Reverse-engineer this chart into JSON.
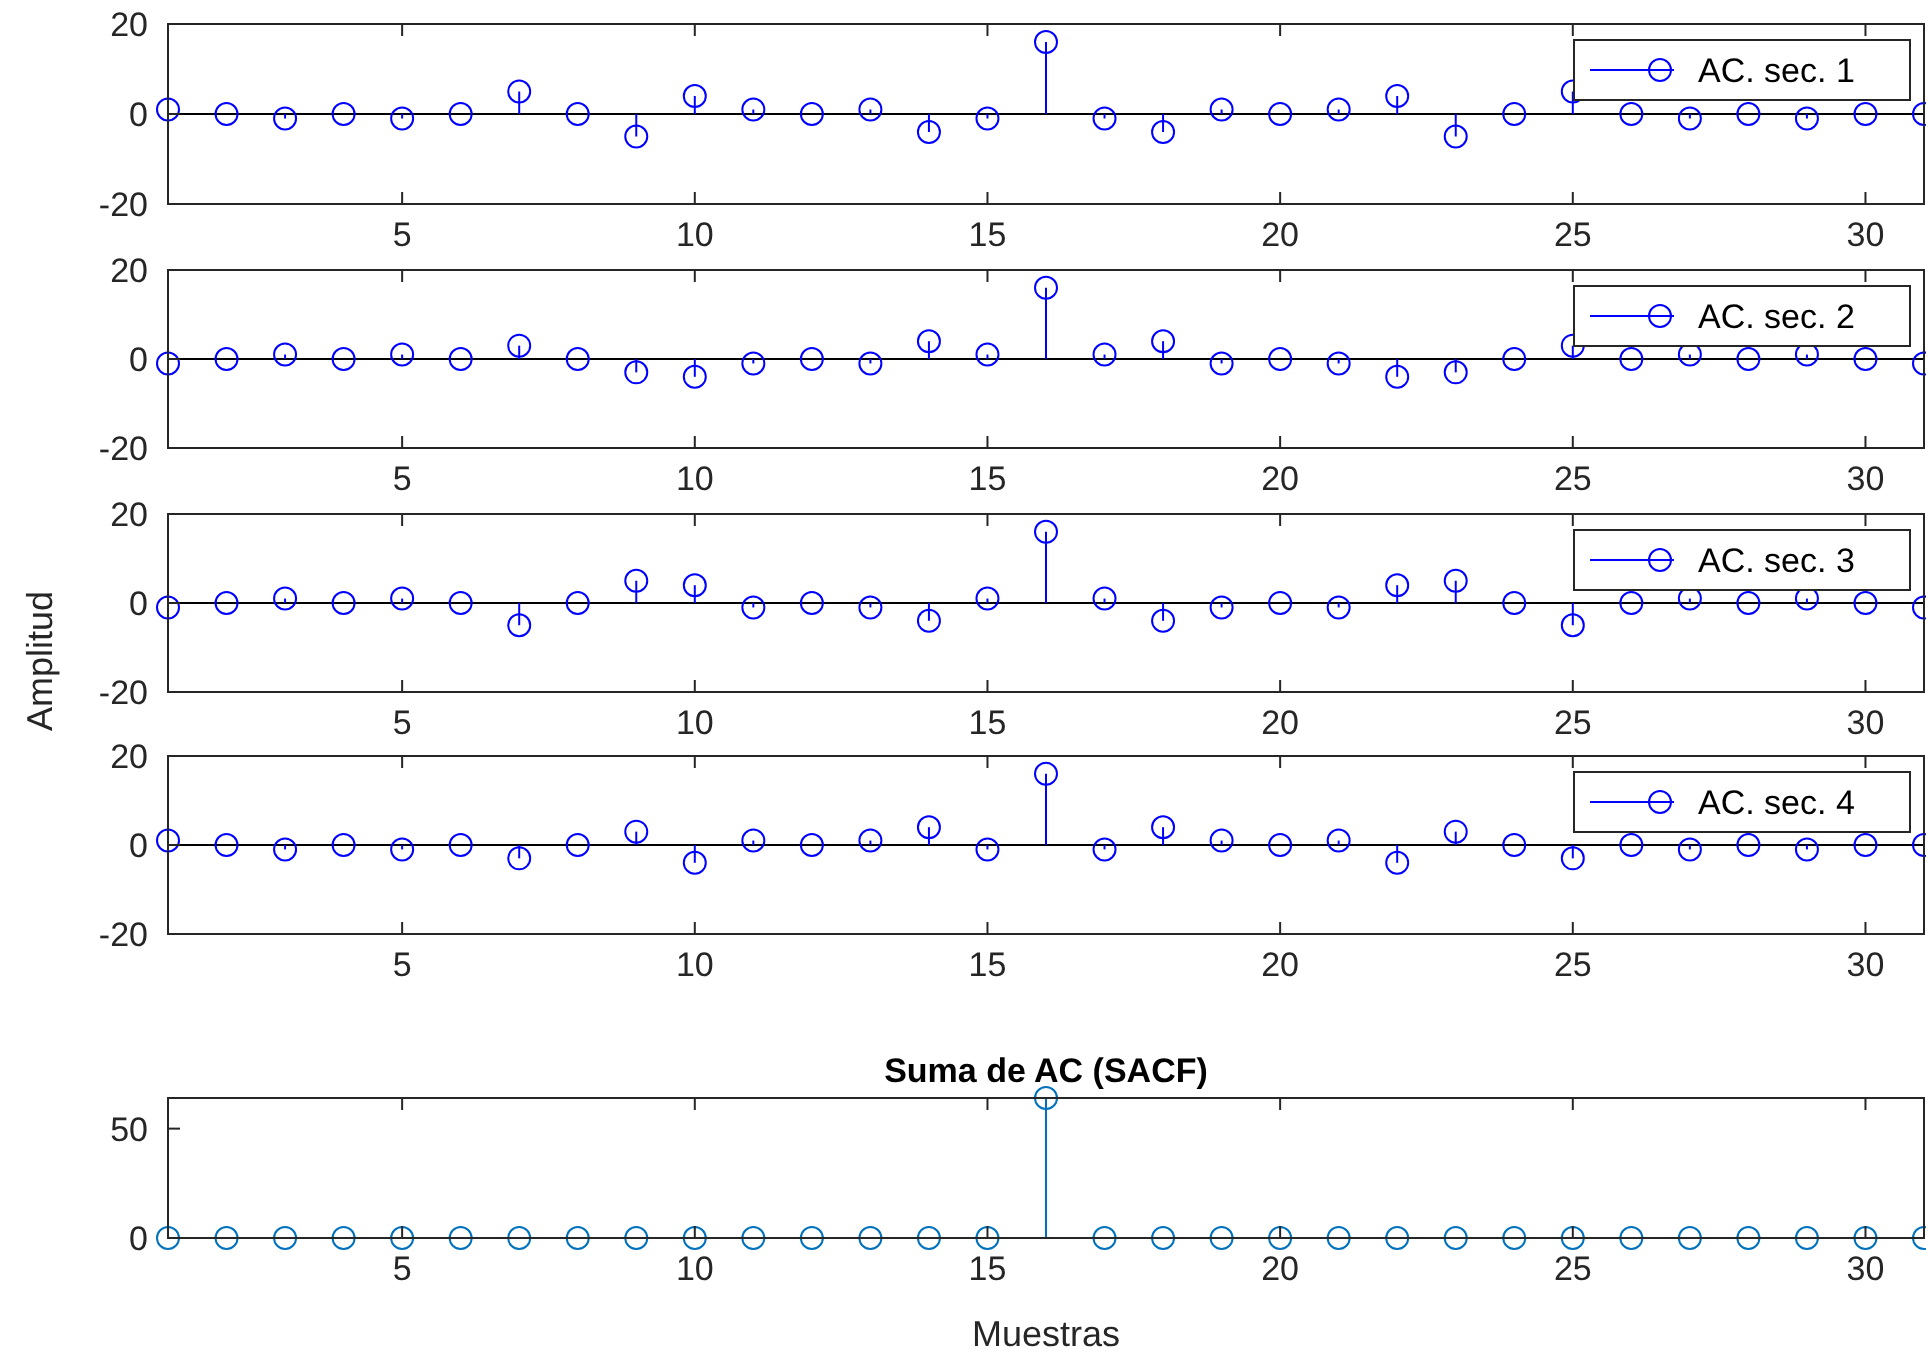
{
  "chart_data": [
    {
      "type": "lollipop",
      "x": [
        1,
        2,
        3,
        4,
        5,
        6,
        7,
        8,
        9,
        10,
        11,
        12,
        13,
        14,
        15,
        16,
        17,
        18,
        19,
        20,
        21,
        22,
        23,
        24,
        25,
        26,
        27,
        28,
        29,
        30,
        31
      ],
      "xlim": [
        1,
        31
      ],
      "xticks": [
        5,
        10,
        15,
        20,
        25,
        30
      ],
      "ylim": [
        -20,
        20
      ],
      "yticks": [
        -20,
        0,
        20
      ],
      "marker": "circle",
      "legend": "top right",
      "series": [
        {
          "name": "AC. sec. 1",
          "color": "#0000ff",
          "values": [
            1,
            0,
            -1,
            0,
            -1,
            0,
            5,
            0,
            -5,
            4,
            1,
            0,
            1,
            -4,
            -1,
            16,
            -1,
            -4,
            1,
            0,
            1,
            4,
            -5,
            0,
            5,
            0,
            -1,
            0,
            -1,
            0,
            0
          ]
        }
      ]
    },
    {
      "type": "lollipop",
      "x": [
        1,
        2,
        3,
        4,
        5,
        6,
        7,
        8,
        9,
        10,
        11,
        12,
        13,
        14,
        15,
        16,
        17,
        18,
        19,
        20,
        21,
        22,
        23,
        24,
        25,
        26,
        27,
        28,
        29,
        30,
        31
      ],
      "xlim": [
        1,
        31
      ],
      "xticks": [
        5,
        10,
        15,
        20,
        25,
        30
      ],
      "ylim": [
        -20,
        20
      ],
      "yticks": [
        -20,
        0,
        20
      ],
      "marker": "circle",
      "legend": "top right",
      "series": [
        {
          "name": "AC. sec. 2",
          "color": "#0000ff",
          "values": [
            -1,
            0,
            1,
            0,
            1,
            0,
            3,
            0,
            -3,
            -4,
            -1,
            0,
            -1,
            4,
            1,
            16,
            1,
            4,
            -1,
            0,
            -1,
            -4,
            -3,
            0,
            3,
            0,
            1,
            0,
            1,
            0,
            -1
          ]
        }
      ]
    },
    {
      "type": "lollipop",
      "x": [
        1,
        2,
        3,
        4,
        5,
        6,
        7,
        8,
        9,
        10,
        11,
        12,
        13,
        14,
        15,
        16,
        17,
        18,
        19,
        20,
        21,
        22,
        23,
        24,
        25,
        26,
        27,
        28,
        29,
        30,
        31
      ],
      "xlim": [
        1,
        31
      ],
      "xticks": [
        5,
        10,
        15,
        20,
        25,
        30
      ],
      "ylim": [
        -20,
        20
      ],
      "yticks": [
        -20,
        0,
        20
      ],
      "marker": "circle",
      "legend": "top right",
      "ylabel": "Amplitud",
      "series": [
        {
          "name": "AC. sec. 3",
          "color": "#0000ff",
          "values": [
            -1,
            0,
            1,
            0,
            1,
            0,
            -5,
            0,
            5,
            4,
            -1,
            0,
            -1,
            -4,
            1,
            16,
            1,
            -4,
            -1,
            0,
            -1,
            4,
            5,
            0,
            -5,
            0,
            1,
            0,
            1,
            0,
            -1
          ]
        }
      ]
    },
    {
      "type": "lollipop",
      "x": [
        1,
        2,
        3,
        4,
        5,
        6,
        7,
        8,
        9,
        10,
        11,
        12,
        13,
        14,
        15,
        16,
        17,
        18,
        19,
        20,
        21,
        22,
        23,
        24,
        25,
        26,
        27,
        28,
        29,
        30,
        31
      ],
      "xlim": [
        1,
        31
      ],
      "xticks": [
        5,
        10,
        15,
        20,
        25,
        30
      ],
      "ylim": [
        -20,
        20
      ],
      "yticks": [
        -20,
        0,
        20
      ],
      "marker": "circle",
      "legend": "top right",
      "series": [
        {
          "name": "AC. sec. 4",
          "color": "#0000ff",
          "values": [
            1,
            0,
            -1,
            0,
            -1,
            0,
            -3,
            0,
            3,
            -4,
            1,
            0,
            1,
            4,
            -1,
            16,
            -1,
            4,
            1,
            0,
            1,
            -4,
            3,
            0,
            -3,
            0,
            -1,
            0,
            -1,
            0,
            0
          ]
        }
      ]
    },
    {
      "type": "lollipop",
      "title": "Suma de AC (SACF)",
      "xlabel": "Muestras",
      "x": [
        1,
        2,
        3,
        4,
        5,
        6,
        7,
        8,
        9,
        10,
        11,
        12,
        13,
        14,
        15,
        16,
        17,
        18,
        19,
        20,
        21,
        22,
        23,
        24,
        25,
        26,
        27,
        28,
        29,
        30,
        31
      ],
      "xlim": [
        1,
        31
      ],
      "xticks": [
        5,
        10,
        15,
        20,
        25,
        30
      ],
      "ylim": [
        0,
        64
      ],
      "yticks": [
        0,
        50
      ],
      "marker": "circle",
      "legend": false,
      "series": [
        {
          "color": "#0072bd",
          "values": [
            0,
            0,
            0,
            0,
            0,
            0,
            0,
            0,
            0,
            0,
            0,
            0,
            0,
            0,
            0,
            64,
            0,
            0,
            0,
            0,
            0,
            0,
            0,
            0,
            0,
            0,
            0,
            0,
            0,
            0,
            0
          ]
        }
      ]
    }
  ]
}
